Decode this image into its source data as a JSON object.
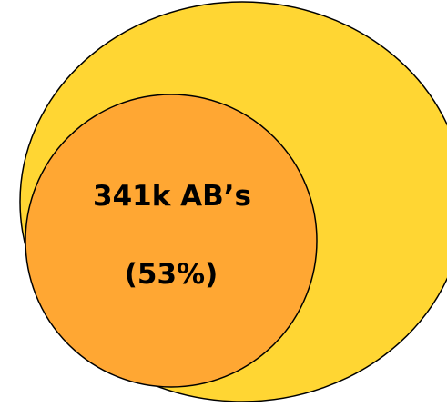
{
  "diagram": {
    "outer_circle": {
      "fill": "#FFD633",
      "stroke": "#000000"
    },
    "inner_circle": {
      "fill": "#FFA733",
      "stroke": "#000000"
    },
    "label_line1": "341k AB’s",
    "label_line2": "(53%)"
  }
}
